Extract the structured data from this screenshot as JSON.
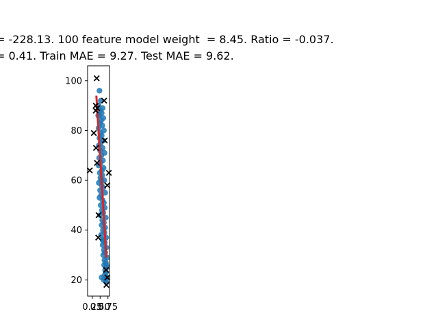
{
  "chart_data": {
    "type": "scatter",
    "title_lines": [
      "= -228.13. 100 feature model weight  = 8.45. Ratio = -0.037.",
      "= 0.41. Train MAE = 9.27. Test MAE = 9.62."
    ],
    "xlabel": "",
    "ylabel": "",
    "xlim": [
      0.1,
      0.8
    ],
    "ylim": [
      13.5,
      106
    ],
    "x_ticks": [
      0.25,
      0.5,
      0.75
    ],
    "x_tick_labels": [
      "0.25",
      "0.50",
      "0.75"
    ],
    "y_ticks": [
      20,
      40,
      60,
      80,
      100
    ],
    "y_tick_labels": [
      "20",
      "40",
      "60",
      "80",
      "100"
    ],
    "grid": false,
    "series": [
      {
        "kind": "scatter-circle",
        "color": "#1f77b4",
        "points": [
          [
            0.48,
            96
          ],
          [
            0.52,
            92
          ],
          [
            0.45,
            90
          ],
          [
            0.58,
            89
          ],
          [
            0.5,
            88
          ],
          [
            0.55,
            87
          ],
          [
            0.47,
            86
          ],
          [
            0.6,
            85
          ],
          [
            0.53,
            84
          ],
          [
            0.49,
            83
          ],
          [
            0.57,
            82
          ],
          [
            0.45,
            81
          ],
          [
            0.62,
            80
          ],
          [
            0.51,
            79
          ],
          [
            0.55,
            78
          ],
          [
            0.48,
            77
          ],
          [
            0.6,
            76
          ],
          [
            0.52,
            75
          ],
          [
            0.46,
            74
          ],
          [
            0.58,
            73
          ],
          [
            0.5,
            72
          ],
          [
            0.64,
            71
          ],
          [
            0.54,
            70
          ],
          [
            0.47,
            69
          ],
          [
            0.59,
            68
          ],
          [
            0.52,
            67
          ],
          [
            0.45,
            66
          ],
          [
            0.61,
            65
          ],
          [
            0.56,
            64
          ],
          [
            0.49,
            63
          ],
          [
            0.57,
            62
          ],
          [
            0.51,
            61
          ],
          [
            0.63,
            60
          ],
          [
            0.46,
            59
          ],
          [
            0.55,
            58
          ],
          [
            0.6,
            57
          ],
          [
            0.5,
            56
          ],
          [
            0.66,
            55
          ],
          [
            0.53,
            54
          ],
          [
            0.48,
            53
          ],
          [
            0.58,
            52
          ],
          [
            0.62,
            51
          ],
          [
            0.52,
            50
          ],
          [
            0.65,
            49
          ],
          [
            0.56,
            48
          ],
          [
            0.6,
            47
          ],
          [
            0.5,
            46
          ],
          [
            0.68,
            45
          ],
          [
            0.57,
            44
          ],
          [
            0.62,
            43
          ],
          [
            0.55,
            42
          ],
          [
            0.66,
            41
          ],
          [
            0.59,
            40
          ],
          [
            0.64,
            39
          ],
          [
            0.53,
            38
          ],
          [
            0.69,
            37
          ],
          [
            0.6,
            36
          ],
          [
            0.65,
            35
          ],
          [
            0.58,
            34
          ],
          [
            0.7,
            33
          ],
          [
            0.62,
            32
          ],
          [
            0.66,
            31
          ],
          [
            0.6,
            30
          ],
          [
            0.72,
            29
          ],
          [
            0.64,
            28
          ],
          [
            0.68,
            27
          ],
          [
            0.63,
            26
          ],
          [
            0.71,
            25
          ],
          [
            0.66,
            24
          ],
          [
            0.69,
            23
          ],
          [
            0.65,
            22
          ],
          [
            0.72,
            21
          ],
          [
            0.68,
            20
          ],
          [
            0.7,
            19
          ],
          [
            0.62,
            20
          ],
          [
            0.55,
            21
          ],
          [
            0.7,
            26
          ],
          [
            0.58,
            36
          ],
          [
            0.54,
            60
          ],
          [
            0.44,
            86
          ]
        ]
      },
      {
        "kind": "scatter-x",
        "color": "#000000",
        "points": [
          [
            0.39,
            101
          ],
          [
            0.63,
            92
          ],
          [
            0.36,
            90
          ],
          [
            0.41,
            89
          ],
          [
            0.3,
            79
          ],
          [
            0.65,
            76
          ],
          [
            0.37,
            73
          ],
          [
            0.4,
            67
          ],
          [
            0.17,
            64
          ],
          [
            0.78,
            63
          ],
          [
            0.73,
            58
          ],
          [
            0.45,
            46
          ],
          [
            0.44,
            37
          ],
          [
            0.69,
            24
          ],
          [
            0.73,
            21
          ],
          [
            0.7,
            18
          ],
          [
            0.36,
            88
          ]
        ]
      },
      {
        "kind": "line",
        "color": "#d62728",
        "points": [
          [
            0.38,
            94
          ],
          [
            0.7,
            29
          ]
        ]
      }
    ]
  }
}
